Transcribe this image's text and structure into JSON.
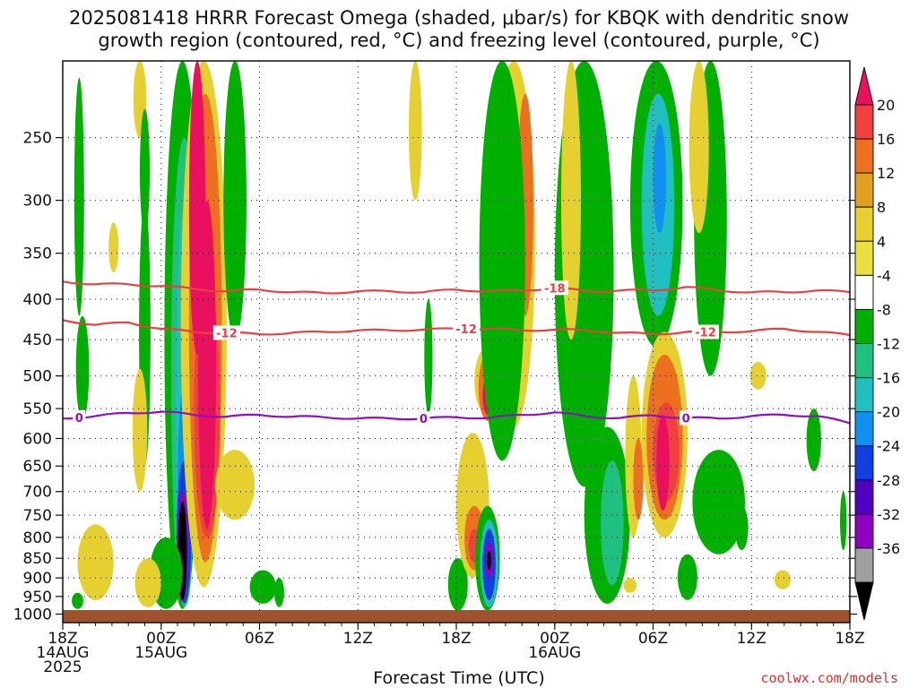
{
  "title_line1": "2025081418 HRRR Forecast Omega (shaded, μbar/s) for KBQK with dendritic snow",
  "title_line2": "growth region (contoured, red, °C) and freezing level (contoured, purple, °C)",
  "xaxis_label": "Forecast Time (UTC)",
  "credit": "coolwx.com/models",
  "chart_data": {
    "type": "heatmap",
    "title": "2025081418 HRRR Forecast Omega (shaded, μbar/s) for KBQK with dendritic snow growth region (contoured, red, °C) and freezing level (contoured, purple, °C)",
    "xlabel": "Forecast Time (UTC)",
    "ylabel": "",
    "x_range_hours": [
      0,
      48
    ],
    "y_range_hpa": [
      1025,
      200
    ],
    "y_ticks": [
      250,
      300,
      350,
      400,
      450,
      500,
      550,
      600,
      650,
      700,
      750,
      800,
      850,
      900,
      950,
      1000
    ],
    "x_ticks": [
      {
        "hour": 0,
        "lines": [
          "18Z",
          "14AUG",
          "2025"
        ]
      },
      {
        "hour": 6,
        "lines": [
          "00Z",
          "15AUG"
        ]
      },
      {
        "hour": 12,
        "lines": [
          "06Z"
        ]
      },
      {
        "hour": 18,
        "lines": [
          "12Z"
        ]
      },
      {
        "hour": 24,
        "lines": [
          "18Z"
        ]
      },
      {
        "hour": 30,
        "lines": [
          "00Z",
          "16AUG"
        ]
      },
      {
        "hour": 36,
        "lines": [
          "06Z"
        ]
      },
      {
        "hour": 42,
        "lines": [
          "12Z"
        ]
      },
      {
        "hour": 48,
        "lines": [
          "18Z"
        ]
      }
    ],
    "grid": true,
    "colorbar": {
      "labels": [
        20,
        16,
        12,
        8,
        4,
        -4,
        -8,
        -12,
        -16,
        -20,
        -24,
        -28,
        -32,
        -36
      ],
      "colors": [
        "#e8105f",
        "#f04040",
        "#ec7020",
        "#e0a020",
        "#e6d030",
        "#e8e040",
        "#ffffff",
        "#00b000",
        "#20c080",
        "#20c0c0",
        "#1090f0",
        "#1040e0",
        "#5000c0",
        "#9000c0",
        "#a0a0a0",
        "#000000"
      ]
    },
    "omega_features": [
      {
        "name": "upward motion column",
        "hour": 7.5,
        "p_top": 220,
        "p_bottom": 975,
        "min": -36
      },
      {
        "name": "sinking column",
        "hour": 8.8,
        "p_top": 200,
        "p_bottom": 900,
        "max": 20
      },
      {
        "name": "upward motion core",
        "hour": 26.0,
        "p_top": 740,
        "p_bottom": 990,
        "min": -36
      },
      {
        "name": "sinking core",
        "hour": 25.5,
        "p_top": 480,
        "p_bottom": 600,
        "max": 20
      },
      {
        "name": "sinking core",
        "hour": 36.6,
        "p_top": 540,
        "p_bottom": 770,
        "max": 20
      },
      {
        "name": "upward motion band",
        "hour": 36.3,
        "p_top": 200,
        "p_bottom": 420,
        "min": -20
      }
    ],
    "contours": [
      {
        "name": "-18",
        "color": "#e84040",
        "label_hours": [
          30.0
        ],
        "points": [
          [
            0,
            380
          ],
          [
            2,
            383
          ],
          [
            4,
            383
          ],
          [
            6,
            385
          ],
          [
            8,
            388
          ],
          [
            10,
            391
          ],
          [
            12,
            389
          ],
          [
            14,
            392
          ],
          [
            16,
            393
          ],
          [
            18,
            391
          ],
          [
            20,
            391
          ],
          [
            22,
            392
          ],
          [
            24,
            389
          ],
          [
            26,
            391
          ],
          [
            28,
            390
          ],
          [
            30,
            387
          ],
          [
            32,
            391
          ],
          [
            34,
            390
          ],
          [
            36,
            390
          ],
          [
            38,
            386
          ],
          [
            40,
            390
          ],
          [
            42,
            392
          ],
          [
            44,
            392
          ],
          [
            46,
            390
          ],
          [
            48,
            392
          ]
        ]
      },
      {
        "name": "-12",
        "color": "#e84040",
        "label_hours": [
          10.0,
          24.6,
          39.2
        ],
        "points": [
          [
            0,
            425
          ],
          [
            2,
            431
          ],
          [
            4,
            428
          ],
          [
            6,
            436
          ],
          [
            8,
            440
          ],
          [
            10,
            441
          ],
          [
            12,
            443
          ],
          [
            14,
            441
          ],
          [
            16,
            440
          ],
          [
            18,
            438
          ],
          [
            20,
            438
          ],
          [
            22,
            437
          ],
          [
            24,
            436
          ],
          [
            26,
            436
          ],
          [
            28,
            438
          ],
          [
            30,
            437
          ],
          [
            32,
            438
          ],
          [
            34,
            441
          ],
          [
            36,
            443
          ],
          [
            38,
            440
          ],
          [
            40,
            440
          ],
          [
            42,
            439
          ],
          [
            44,
            436
          ],
          [
            46,
            440
          ],
          [
            48,
            444
          ]
        ]
      },
      {
        "name": "0",
        "color": "#9010c0",
        "label_hours": [
          1.0,
          22.0,
          38.0
        ],
        "points": [
          [
            0,
            566
          ],
          [
            2,
            562
          ],
          [
            4,
            557
          ],
          [
            6,
            555
          ],
          [
            8,
            560
          ],
          [
            10,
            563
          ],
          [
            12,
            560
          ],
          [
            14,
            563
          ],
          [
            16,
            564
          ],
          [
            18,
            566
          ],
          [
            20,
            566
          ],
          [
            22,
            566
          ],
          [
            24,
            564
          ],
          [
            26,
            565
          ],
          [
            28,
            560
          ],
          [
            30,
            556
          ],
          [
            32,
            563
          ],
          [
            34,
            565
          ],
          [
            36,
            561
          ],
          [
            38,
            565
          ],
          [
            40,
            566
          ],
          [
            42,
            562
          ],
          [
            44,
            560
          ],
          [
            46,
            562
          ],
          [
            48,
            574
          ]
        ]
      }
    ]
  }
}
